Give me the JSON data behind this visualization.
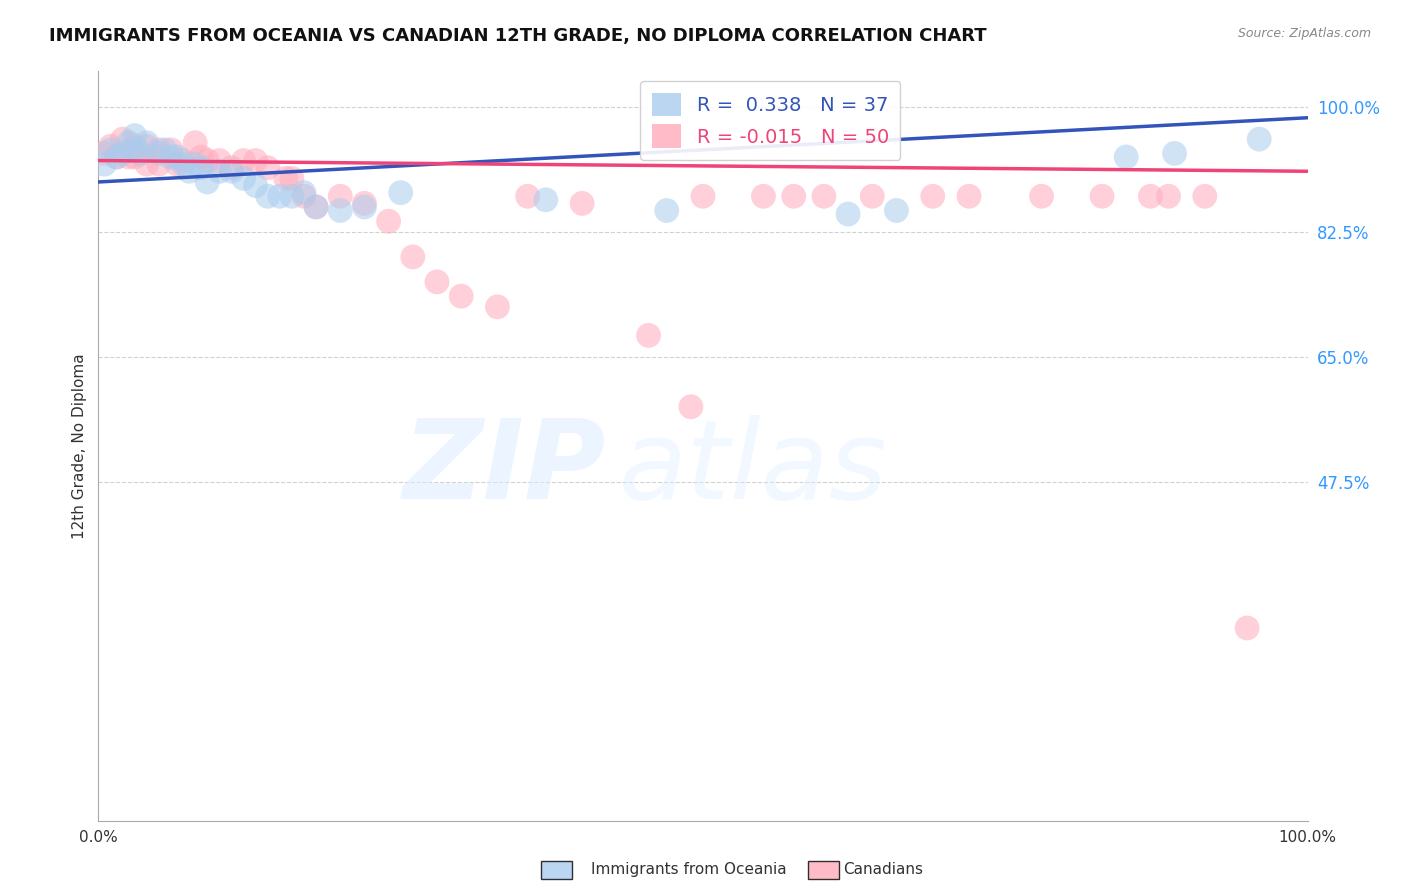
{
  "title": "IMMIGRANTS FROM OCEANIA VS CANADIAN 12TH GRADE, NO DIPLOMA CORRELATION CHART",
  "source": "Source: ZipAtlas.com",
  "ylabel": "12th Grade, No Diploma",
  "xlim": [
    0.0,
    1.0
  ],
  "ylim": [
    0.0,
    1.05
  ],
  "blue_R": 0.338,
  "blue_N": 37,
  "pink_R": -0.015,
  "pink_N": 50,
  "blue_color": "#AACCEE",
  "pink_color": "#FFAABB",
  "blue_line_color": "#3355BB",
  "pink_line_color": "#EE4477",
  "background_color": "#FFFFFF",
  "title_fontsize": 13,
  "ytick_positions": [
    0.475,
    0.65,
    0.825,
    1.0
  ],
  "ytick_labels": [
    "47.5%",
    "65.0%",
    "82.5%",
    "100.0%"
  ],
  "blue_trend": [
    0.895,
    0.985
  ],
  "pink_trend": [
    0.925,
    0.91
  ],
  "blue_x": [
    0.005,
    0.01,
    0.015,
    0.02,
    0.025,
    0.03,
    0.03,
    0.035,
    0.04,
    0.05,
    0.055,
    0.06,
    0.065,
    0.07,
    0.075,
    0.08,
    0.085,
    0.09,
    0.1,
    0.11,
    0.12,
    0.13,
    0.14,
    0.15,
    0.16,
    0.17,
    0.18,
    0.2,
    0.22,
    0.25,
    0.37,
    0.47,
    0.62,
    0.66,
    0.85,
    0.89,
    0.96
  ],
  "blue_y": [
    0.92,
    0.94,
    0.93,
    0.935,
    0.95,
    0.94,
    0.96,
    0.935,
    0.95,
    0.935,
    0.94,
    0.93,
    0.93,
    0.92,
    0.91,
    0.92,
    0.915,
    0.895,
    0.91,
    0.91,
    0.9,
    0.89,
    0.875,
    0.875,
    0.875,
    0.88,
    0.86,
    0.855,
    0.86,
    0.88,
    0.87,
    0.855,
    0.85,
    0.855,
    0.93,
    0.935,
    0.955
  ],
  "pink_x": [
    0.005,
    0.01,
    0.015,
    0.02,
    0.025,
    0.03,
    0.03,
    0.04,
    0.04,
    0.05,
    0.05,
    0.06,
    0.065,
    0.07,
    0.08,
    0.085,
    0.09,
    0.1,
    0.11,
    0.12,
    0.13,
    0.14,
    0.155,
    0.16,
    0.17,
    0.18,
    0.2,
    0.22,
    0.24,
    0.26,
    0.28,
    0.3,
    0.33,
    0.355,
    0.4,
    0.455,
    0.49,
    0.5,
    0.55,
    0.575,
    0.6,
    0.64,
    0.69,
    0.72,
    0.78,
    0.83,
    0.87,
    0.885,
    0.915,
    0.95
  ],
  "pink_y": [
    0.935,
    0.945,
    0.93,
    0.955,
    0.93,
    0.945,
    0.93,
    0.945,
    0.92,
    0.94,
    0.92,
    0.94,
    0.92,
    0.925,
    0.95,
    0.93,
    0.925,
    0.925,
    0.915,
    0.925,
    0.925,
    0.915,
    0.9,
    0.9,
    0.875,
    0.86,
    0.875,
    0.865,
    0.84,
    0.79,
    0.755,
    0.735,
    0.72,
    0.875,
    0.865,
    0.68,
    0.58,
    0.875,
    0.875,
    0.875,
    0.875,
    0.875,
    0.875,
    0.875,
    0.875,
    0.875,
    0.875,
    0.875,
    0.875,
    0.27
  ]
}
